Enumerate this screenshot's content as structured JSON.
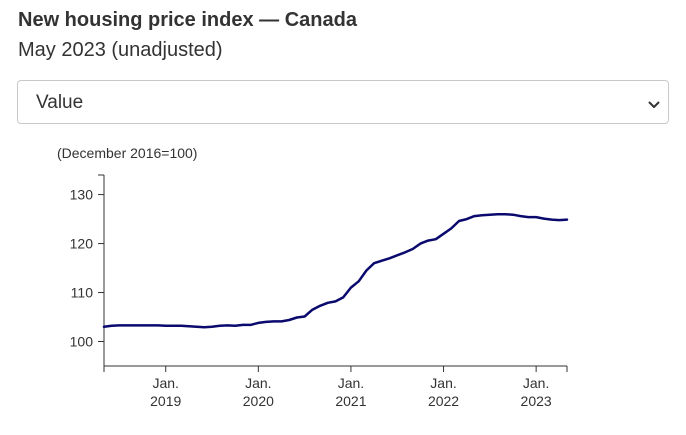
{
  "header": {
    "title": "New housing price index — Canada",
    "subtitle": "May 2023 (unadjusted)"
  },
  "selector": {
    "selected": "Value"
  },
  "icons": {
    "dropdown": "chevron-down-icon"
  },
  "colors": {
    "line": "#0a0a6e",
    "text": "#333333",
    "select_border": "#c9c9c9"
  },
  "chart_data": {
    "type": "line",
    "title": "",
    "xlabel": "",
    "ylabel": "(December 2016=100)",
    "ylim": [
      95,
      134
    ],
    "xlim": [
      "2018-05",
      "2023-05"
    ],
    "yticks": [
      100,
      110,
      120,
      130
    ],
    "xticks": [
      {
        "month": "2019-01",
        "label_line1": "Jan.",
        "label_line2": "2019"
      },
      {
        "month": "2020-01",
        "label_line1": "Jan.",
        "label_line2": "2020"
      },
      {
        "month": "2021-01",
        "label_line1": "Jan.",
        "label_line2": "2021"
      },
      {
        "month": "2022-01",
        "label_line1": "Jan.",
        "label_line2": "2022"
      },
      {
        "month": "2023-01",
        "label_line1": "Jan.",
        "label_line2": "2023"
      }
    ],
    "grid": false,
    "series": [
      {
        "x": [
          "2018-05",
          "2018-06",
          "2018-07",
          "2018-08",
          "2018-09",
          "2018-10",
          "2018-11",
          "2018-12",
          "2019-01",
          "2019-02",
          "2019-03",
          "2019-04",
          "2019-05",
          "2019-06",
          "2019-07",
          "2019-08",
          "2019-09",
          "2019-10",
          "2019-11",
          "2019-12",
          "2020-01",
          "2020-02",
          "2020-03",
          "2020-04",
          "2020-05",
          "2020-06",
          "2020-07",
          "2020-08",
          "2020-09",
          "2020-10",
          "2020-11",
          "2020-12",
          "2021-01",
          "2021-02",
          "2021-03",
          "2021-04",
          "2021-05",
          "2021-06",
          "2021-07",
          "2021-08",
          "2021-09",
          "2021-10",
          "2021-11",
          "2021-12",
          "2022-01",
          "2022-02",
          "2022-03",
          "2022-04",
          "2022-05",
          "2022-06",
          "2022-07",
          "2022-08",
          "2022-09",
          "2022-10",
          "2022-11",
          "2022-12",
          "2023-01",
          "2023-02",
          "2023-03",
          "2023-04",
          "2023-05"
        ],
        "values": [
          103.0,
          103.2,
          103.3,
          103.3,
          103.3,
          103.3,
          103.3,
          103.3,
          103.2,
          103.2,
          103.2,
          103.1,
          103.0,
          102.9,
          103.0,
          103.2,
          103.3,
          103.2,
          103.4,
          103.4,
          103.8,
          104.0,
          104.1,
          104.1,
          104.4,
          104.9,
          105.1,
          106.5,
          107.3,
          107.9,
          108.2,
          109.0,
          111.0,
          112.3,
          114.5,
          116.0,
          116.5,
          117.0,
          117.6,
          118.2,
          118.9,
          120.0,
          120.6,
          120.9,
          122.0,
          123.1,
          124.6,
          125.0,
          125.6,
          125.8,
          125.9,
          126.0,
          126.0,
          125.9,
          125.6,
          125.4,
          125.4,
          125.1,
          124.9,
          124.8,
          124.9
        ]
      }
    ]
  }
}
